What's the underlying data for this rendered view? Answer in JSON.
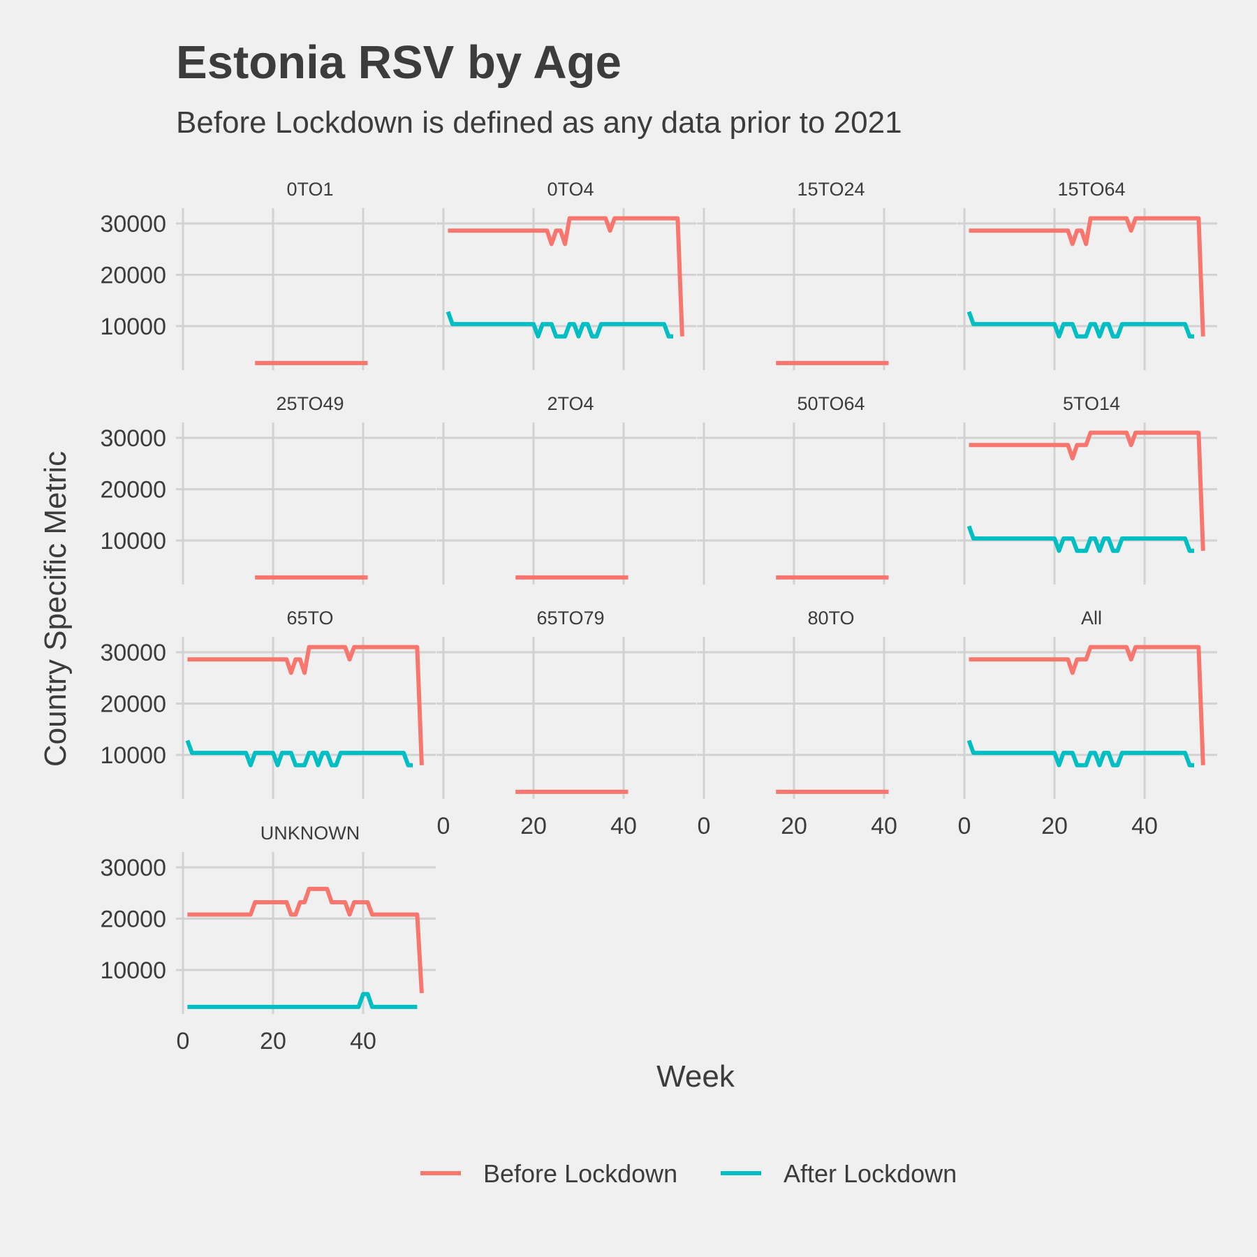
{
  "chart_data": {
    "type": "line",
    "title": "Estonia RSV by Age",
    "subtitle": "Before Lockdown is defined as any data prior to 2021",
    "xlabel": "Week",
    "ylabel": "Country Specific Metric",
    "xlim": [
      0,
      53
    ],
    "ylim": [
      2000,
      32000
    ],
    "x_ticks": [
      0,
      20,
      40
    ],
    "y_ticks": [
      10000,
      20000,
      30000
    ],
    "grid": true,
    "legend_position": "bottom",
    "colors": {
      "before": "#f8766d",
      "after": "#00bfc4"
    },
    "series_names": [
      "Before Lockdown",
      "After Lockdown"
    ],
    "panels": [
      {
        "label": "0TO1",
        "before": [
          [
            16,
            2800
          ],
          [
            41,
            2800
          ]
        ],
        "after": []
      },
      {
        "label": "0TO4",
        "before": [
          [
            1,
            28600
          ],
          [
            23,
            28600
          ],
          [
            24,
            26000
          ],
          [
            25,
            28600
          ],
          [
            26,
            28600
          ],
          [
            27,
            26000
          ],
          [
            28,
            31000
          ],
          [
            36,
            31000
          ],
          [
            37,
            28600
          ],
          [
            38,
            31000
          ],
          [
            52,
            31000
          ],
          [
            53,
            8000
          ]
        ],
        "after": [
          [
            1,
            12800
          ],
          [
            2,
            10400
          ],
          [
            20,
            10400
          ],
          [
            21,
            8000
          ],
          [
            22,
            10400
          ],
          [
            24,
            10400
          ],
          [
            25,
            8000
          ],
          [
            27,
            8000
          ],
          [
            28,
            10400
          ],
          [
            29,
            10400
          ],
          [
            30,
            8000
          ],
          [
            31,
            10400
          ],
          [
            32,
            10400
          ],
          [
            33,
            8000
          ],
          [
            34,
            8000
          ],
          [
            35,
            10400
          ],
          [
            49,
            10400
          ],
          [
            50,
            8000
          ],
          [
            51,
            8000
          ]
        ]
      },
      {
        "label": "15TO24",
        "before": [
          [
            16,
            2800
          ],
          [
            41,
            2800
          ]
        ],
        "after": []
      },
      {
        "label": "15TO64",
        "before": [
          [
            1,
            28600
          ],
          [
            23,
            28600
          ],
          [
            24,
            26000
          ],
          [
            25,
            28600
          ],
          [
            26,
            28600
          ],
          [
            27,
            26000
          ],
          [
            28,
            31000
          ],
          [
            36,
            31000
          ],
          [
            37,
            28600
          ],
          [
            38,
            31000
          ],
          [
            52,
            31000
          ],
          [
            53,
            8000
          ]
        ],
        "after": [
          [
            1,
            12800
          ],
          [
            2,
            10400
          ],
          [
            20,
            10400
          ],
          [
            21,
            8000
          ],
          [
            22,
            10400
          ],
          [
            24,
            10400
          ],
          [
            25,
            8000
          ],
          [
            27,
            8000
          ],
          [
            28,
            10400
          ],
          [
            29,
            10400
          ],
          [
            30,
            8000
          ],
          [
            31,
            10400
          ],
          [
            32,
            10400
          ],
          [
            33,
            8000
          ],
          [
            34,
            8000
          ],
          [
            35,
            10400
          ],
          [
            49,
            10400
          ],
          [
            50,
            8000
          ],
          [
            51,
            8000
          ]
        ]
      },
      {
        "label": "25TO49",
        "before": [
          [
            16,
            2800
          ],
          [
            41,
            2800
          ]
        ],
        "after": []
      },
      {
        "label": "2TO4",
        "before": [
          [
            16,
            2800
          ],
          [
            41,
            2800
          ]
        ],
        "after": []
      },
      {
        "label": "50TO64",
        "before": [
          [
            16,
            2800
          ],
          [
            41,
            2800
          ]
        ],
        "after": []
      },
      {
        "label": "5TO14",
        "before": [
          [
            1,
            28600
          ],
          [
            23,
            28600
          ],
          [
            24,
            26000
          ],
          [
            25,
            28600
          ],
          [
            27,
            28600
          ],
          [
            28,
            31000
          ],
          [
            36,
            31000
          ],
          [
            37,
            28600
          ],
          [
            38,
            31000
          ],
          [
            52,
            31000
          ],
          [
            53,
            8000
          ]
        ],
        "after": [
          [
            1,
            12800
          ],
          [
            2,
            10400
          ],
          [
            20,
            10400
          ],
          [
            21,
            8000
          ],
          [
            22,
            10400
          ],
          [
            24,
            10400
          ],
          [
            25,
            8000
          ],
          [
            27,
            8000
          ],
          [
            28,
            10400
          ],
          [
            29,
            10400
          ],
          [
            30,
            8000
          ],
          [
            31,
            10400
          ],
          [
            32,
            10400
          ],
          [
            33,
            8000
          ],
          [
            34,
            8000
          ],
          [
            35,
            10400
          ],
          [
            49,
            10400
          ],
          [
            50,
            8000
          ],
          [
            51,
            8000
          ]
        ]
      },
      {
        "label": "65TO",
        "before": [
          [
            1,
            28600
          ],
          [
            23,
            28600
          ],
          [
            24,
            26000
          ],
          [
            25,
            28600
          ],
          [
            26,
            28600
          ],
          [
            27,
            26000
          ],
          [
            28,
            31000
          ],
          [
            36,
            31000
          ],
          [
            37,
            28600
          ],
          [
            38,
            31000
          ],
          [
            52,
            31000
          ],
          [
            53,
            8000
          ]
        ],
        "after": [
          [
            1,
            12800
          ],
          [
            2,
            10400
          ],
          [
            14,
            10400
          ],
          [
            15,
            8000
          ],
          [
            16,
            10400
          ],
          [
            20,
            10400
          ],
          [
            21,
            8000
          ],
          [
            22,
            10400
          ],
          [
            24,
            10400
          ],
          [
            25,
            8000
          ],
          [
            27,
            8000
          ],
          [
            28,
            10400
          ],
          [
            29,
            10400
          ],
          [
            30,
            8000
          ],
          [
            31,
            10400
          ],
          [
            32,
            10400
          ],
          [
            33,
            8000
          ],
          [
            34,
            8000
          ],
          [
            35,
            10400
          ],
          [
            49,
            10400
          ],
          [
            50,
            8000
          ],
          [
            51,
            8000
          ]
        ]
      },
      {
        "label": "65TO79",
        "before": [
          [
            16,
            2800
          ],
          [
            41,
            2800
          ]
        ],
        "after": []
      },
      {
        "label": "80TO",
        "before": [
          [
            16,
            2800
          ],
          [
            41,
            2800
          ]
        ],
        "after": []
      },
      {
        "label": "All",
        "before": [
          [
            1,
            28600
          ],
          [
            23,
            28600
          ],
          [
            24,
            26000
          ],
          [
            25,
            28600
          ],
          [
            27,
            28600
          ],
          [
            28,
            31000
          ],
          [
            36,
            31000
          ],
          [
            37,
            28600
          ],
          [
            38,
            31000
          ],
          [
            52,
            31000
          ],
          [
            53,
            8000
          ]
        ],
        "after": [
          [
            1,
            12800
          ],
          [
            2,
            10400
          ],
          [
            20,
            10400
          ],
          [
            21,
            8000
          ],
          [
            22,
            10400
          ],
          [
            24,
            10400
          ],
          [
            25,
            8000
          ],
          [
            27,
            8000
          ],
          [
            28,
            10400
          ],
          [
            29,
            10400
          ],
          [
            30,
            8000
          ],
          [
            31,
            10400
          ],
          [
            32,
            10400
          ],
          [
            33,
            8000
          ],
          [
            34,
            8000
          ],
          [
            35,
            10400
          ],
          [
            49,
            10400
          ],
          [
            50,
            8000
          ],
          [
            51,
            8000
          ]
        ]
      },
      {
        "label": "UNKNOWN",
        "before": [
          [
            1,
            20800
          ],
          [
            15,
            20800
          ],
          [
            16,
            23200
          ],
          [
            23,
            23200
          ],
          [
            24,
            20800
          ],
          [
            25,
            20800
          ],
          [
            26,
            23200
          ],
          [
            27,
            23200
          ],
          [
            28,
            25800
          ],
          [
            32,
            25800
          ],
          [
            33,
            23200
          ],
          [
            36,
            23200
          ],
          [
            37,
            20800
          ],
          [
            38,
            23200
          ],
          [
            41,
            23200
          ],
          [
            42,
            20800
          ],
          [
            52,
            20800
          ],
          [
            53,
            5500
          ]
        ],
        "after": [
          [
            1,
            2800
          ],
          [
            39,
            2800
          ],
          [
            40,
            5300
          ],
          [
            41,
            5300
          ],
          [
            42,
            2800
          ],
          [
            52,
            2800
          ]
        ]
      }
    ]
  }
}
